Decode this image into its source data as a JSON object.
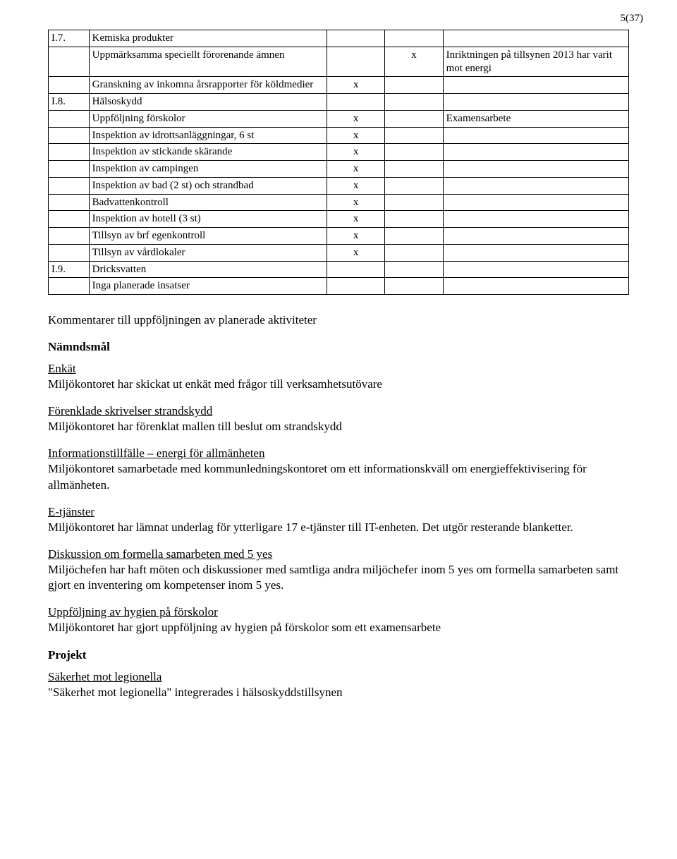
{
  "page_number": "5(37)",
  "table": {
    "rows": [
      {
        "c1": "I.7.",
        "c2": "Kemiska produkter",
        "c3": "",
        "c4": "",
        "c5": ""
      },
      {
        "c1": "",
        "c2": "Uppmärksamma speciellt förorenande ämnen",
        "c3": "",
        "c4": "x",
        "c5": "Inriktningen på tillsynen 2013 har varit mot energi"
      },
      {
        "c1": "",
        "c2": "Granskning av inkomna årsrapporter för köldmedier",
        "c3": "x",
        "c4": "",
        "c5": ""
      },
      {
        "c1": "I.8.",
        "c2": "Hälsoskydd",
        "c3": "",
        "c4": "",
        "c5": ""
      },
      {
        "c1": "",
        "c2": "Uppföljning förskolor",
        "c3": "x",
        "c4": "",
        "c5": "Examensarbete"
      },
      {
        "c1": "",
        "c2": "Inspektion av idrottsanläggningar, 6 st",
        "c3": "x",
        "c4": "",
        "c5": ""
      },
      {
        "c1": "",
        "c2": "Inspektion av stickande skärande",
        "c3": "x",
        "c4": "",
        "c5": ""
      },
      {
        "c1": "",
        "c2": "Inspektion av campingen",
        "c3": "x",
        "c4": "",
        "c5": ""
      },
      {
        "c1": "",
        "c2": "Inspektion av bad (2 st) och strandbad",
        "c3": "x",
        "c4": "",
        "c5": ""
      },
      {
        "c1": "",
        "c2": "Badvattenkontroll",
        "c3": "x",
        "c4": "",
        "c5": ""
      },
      {
        "c1": "",
        "c2": "Inspektion av hotell (3 st)",
        "c3": "x",
        "c4": "",
        "c5": ""
      },
      {
        "c1": "",
        "c2": "Tillsyn av brf egenkontroll",
        "c3": "x",
        "c4": "",
        "c5": ""
      },
      {
        "c1": "",
        "c2": "Tillsyn av vårdlokaler",
        "c3": "x",
        "c4": "",
        "c5": ""
      },
      {
        "c1": "I.9.",
        "c2": "Dricksvatten",
        "c3": "",
        "c4": "",
        "c5": ""
      },
      {
        "c1": "",
        "c2": "Inga planerade insatser",
        "c3": "",
        "c4": "",
        "c5": ""
      }
    ]
  },
  "heading_komm": "Kommentarer till uppföljningen av planerade aktiviteter",
  "heading_namnd": "Nämndsmål",
  "blocks": [
    {
      "title": "Enkät",
      "body": "Miljökontoret har skickat ut enkät med frågor till verksamhetsutövare"
    },
    {
      "title": "Förenklade skrivelser strandskydd",
      "body": "Miljökontoret har förenklat mallen till beslut om strandskydd"
    },
    {
      "title": "Informationstillfälle – energi för allmänheten",
      "body": "Miljökontoret samarbetade med kommunledningskontoret om ett informationskväll om energieffektivisering för allmänheten."
    },
    {
      "title": "E-tjänster",
      "body": "Miljökontoret har lämnat underlag för ytterligare 17 e-tjänster till IT-enheten. Det utgör resterande blanketter."
    },
    {
      "title": "Diskussion om formella samarbeten med 5 yes",
      "body": "Miljöchefen har haft möten och diskussioner med samtliga andra miljöchefer inom 5 yes om formella samarbeten samt gjort en inventering om kompetenser inom 5 yes."
    },
    {
      "title": "Uppföljning av hygien på förskolor",
      "body": "Miljökontoret har gjort uppföljning av hygien på förskolor som ett examensarbete"
    }
  ],
  "heading_projekt": "Projekt",
  "projekt_block": {
    "title": "Säkerhet mot legionella",
    "body": "\"Säkerhet mot legionella\" integrerades i hälsoskyddstillsynen"
  }
}
